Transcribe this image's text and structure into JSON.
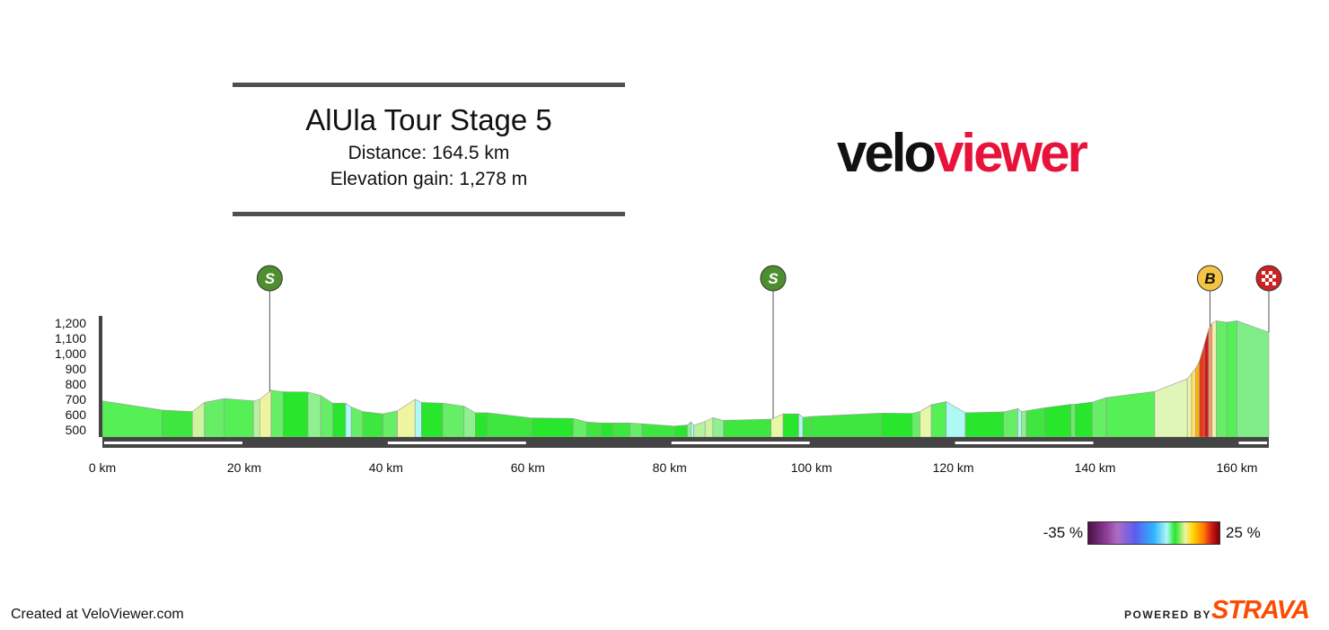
{
  "header": {
    "title": "AlUla Tour Stage 5",
    "distance": "Distance: 164.5 km",
    "elevation_gain": "Elevation gain: 1,278 m"
  },
  "brand": {
    "part1": "velo",
    "part2": "viewer"
  },
  "chart_data": {
    "type": "area",
    "title": "",
    "xlabel": "",
    "ylabel": "",
    "xlim": [
      0,
      164.5
    ],
    "ylim": [
      500,
      1200
    ],
    "y_ticks": [
      1200,
      1100,
      1000,
      900,
      800,
      700,
      600,
      500
    ],
    "y_tick_labels": [
      "1,200",
      "1,100",
      "1,000",
      "900",
      "800",
      "700",
      "600",
      "500"
    ],
    "x_ticks": [
      0,
      20,
      40,
      60,
      80,
      100,
      120,
      140,
      160
    ],
    "x_tick_labels": [
      "0 km",
      "20 km",
      "40 km",
      "60 km",
      "80 km",
      "100 km",
      "120 km",
      "140 km",
      "160 km"
    ],
    "grid": false,
    "segments": [
      {
        "x0": 0,
        "x1": 8.4,
        "y0": 690,
        "y1": 630,
        "color": "#55f055"
      },
      {
        "x0": 8.4,
        "x1": 12.7,
        "y0": 630,
        "y1": 620,
        "color": "#40e640"
      },
      {
        "x0": 12.7,
        "x1": 14.4,
        "y0": 620,
        "y1": 680,
        "color": "#cdf5a0"
      },
      {
        "x0": 14.4,
        "x1": 17.2,
        "y0": 680,
        "y1": 705,
        "color": "#66ee66"
      },
      {
        "x0": 17.2,
        "x1": 21.3,
        "y0": 705,
        "y1": 690,
        "color": "#55f055"
      },
      {
        "x0": 21.3,
        "x1": 22.2,
        "y0": 690,
        "y1": 700,
        "color": "#b8f0a0"
      },
      {
        "x0": 22.2,
        "x1": 23.8,
        "y0": 700,
        "y1": 760,
        "color": "#eef4a0"
      },
      {
        "x0": 23.8,
        "x1": 25.5,
        "y0": 760,
        "y1": 750,
        "color": "#66ee66"
      },
      {
        "x0": 25.5,
        "x1": 29.0,
        "y0": 750,
        "y1": 748,
        "color": "#28e62c"
      },
      {
        "x0": 29.0,
        "x1": 30.8,
        "y0": 748,
        "y1": 725,
        "color": "#8ef08e"
      },
      {
        "x0": 30.8,
        "x1": 32.5,
        "y0": 725,
        "y1": 675,
        "color": "#66ee66"
      },
      {
        "x0": 32.5,
        "x1": 34.3,
        "y0": 675,
        "y1": 675,
        "color": "#28e62c"
      },
      {
        "x0": 34.3,
        "x1": 35.1,
        "y0": 675,
        "y1": 650,
        "color": "#aef8f5"
      },
      {
        "x0": 35.1,
        "x1": 36.7,
        "y0": 650,
        "y1": 620,
        "color": "#66ee66"
      },
      {
        "x0": 36.7,
        "x1": 39.6,
        "y0": 620,
        "y1": 605,
        "color": "#40e640"
      },
      {
        "x0": 39.6,
        "x1": 41.6,
        "y0": 605,
        "y1": 625,
        "color": "#66ee66"
      },
      {
        "x0": 41.6,
        "x1": 44.1,
        "y0": 625,
        "y1": 700,
        "color": "#eef4a0"
      },
      {
        "x0": 44.1,
        "x1": 45.0,
        "y0": 700,
        "y1": 680,
        "color": "#aef8f5"
      },
      {
        "x0": 45.0,
        "x1": 48.0,
        "y0": 680,
        "y1": 675,
        "color": "#28e62c"
      },
      {
        "x0": 48.0,
        "x1": 51.0,
        "y0": 675,
        "y1": 655,
        "color": "#66ee66"
      },
      {
        "x0": 51.0,
        "x1": 52.6,
        "y0": 655,
        "y1": 612,
        "color": "#8ef08e"
      },
      {
        "x0": 52.6,
        "x1": 54.3,
        "y0": 612,
        "y1": 612,
        "color": "#28e62c"
      },
      {
        "x0": 54.3,
        "x1": 60.6,
        "y0": 612,
        "y1": 578,
        "color": "#40e640"
      },
      {
        "x0": 60.6,
        "x1": 66.4,
        "y0": 578,
        "y1": 575,
        "color": "#28e62c"
      },
      {
        "x0": 66.4,
        "x1": 68.3,
        "y0": 575,
        "y1": 552,
        "color": "#66ee66"
      },
      {
        "x0": 68.3,
        "x1": 70.4,
        "y0": 552,
        "y1": 545,
        "color": "#40e640"
      },
      {
        "x0": 70.4,
        "x1": 72.0,
        "y0": 545,
        "y1": 545,
        "color": "#28e62c"
      },
      {
        "x0": 72.0,
        "x1": 74.4,
        "y0": 545,
        "y1": 545,
        "color": "#40e640"
      },
      {
        "x0": 74.4,
        "x1": 76.1,
        "y0": 545,
        "y1": 540,
        "color": "#66ee66"
      },
      {
        "x0": 76.1,
        "x1": 80.7,
        "y0": 540,
        "y1": 525,
        "color": "#40e640"
      },
      {
        "x0": 80.7,
        "x1": 82.5,
        "y0": 525,
        "y1": 532,
        "color": "#28e62c"
      },
      {
        "x0": 82.5,
        "x1": 83.0,
        "y0": 532,
        "y1": 552,
        "color": "#8ef08e"
      },
      {
        "x0": 83.0,
        "x1": 83.4,
        "y0": 552,
        "y1": 530,
        "color": "#aef8f5"
      },
      {
        "x0": 83.4,
        "x1": 85.0,
        "y0": 530,
        "y1": 555,
        "color": "#b8f0a0"
      },
      {
        "x0": 85.0,
        "x1": 86.1,
        "y0": 555,
        "y1": 580,
        "color": "#cdf5a0"
      },
      {
        "x0": 86.1,
        "x1": 87.6,
        "y0": 580,
        "y1": 562,
        "color": "#8ef08e"
      },
      {
        "x0": 87.6,
        "x1": 94.3,
        "y0": 562,
        "y1": 570,
        "color": "#40e640"
      },
      {
        "x0": 94.3,
        "x1": 96.0,
        "y0": 570,
        "y1": 605,
        "color": "#e6f7a8"
      },
      {
        "x0": 96.0,
        "x1": 98.2,
        "y0": 605,
        "y1": 605,
        "color": "#28e62c"
      },
      {
        "x0": 98.2,
        "x1": 98.8,
        "y0": 605,
        "y1": 582,
        "color": "#aef8f5"
      },
      {
        "x0": 98.8,
        "x1": 100.0,
        "y0": 582,
        "y1": 588,
        "color": "#40e640"
      },
      {
        "x0": 100.0,
        "x1": 109.9,
        "y0": 588,
        "y1": 610,
        "color": "#40e640"
      },
      {
        "x0": 109.9,
        "x1": 114.2,
        "y0": 610,
        "y1": 608,
        "color": "#28e62c"
      },
      {
        "x0": 114.2,
        "x1": 115.3,
        "y0": 608,
        "y1": 620,
        "color": "#66ee66"
      },
      {
        "x0": 115.3,
        "x1": 116.9,
        "y0": 620,
        "y1": 665,
        "color": "#e6f7a8"
      },
      {
        "x0": 116.9,
        "x1": 119.0,
        "y0": 665,
        "y1": 685,
        "color": "#55f055"
      },
      {
        "x0": 119.0,
        "x1": 121.7,
        "y0": 685,
        "y1": 612,
        "color": "#aef8f5"
      },
      {
        "x0": 121.7,
        "x1": 127.1,
        "y0": 612,
        "y1": 618,
        "color": "#28e62c"
      },
      {
        "x0": 127.1,
        "x1": 129.1,
        "y0": 618,
        "y1": 640,
        "color": "#66ee66"
      },
      {
        "x0": 129.1,
        "x1": 129.6,
        "y0": 640,
        "y1": 620,
        "color": "#aef8f5"
      },
      {
        "x0": 129.6,
        "x1": 130.3,
        "y0": 620,
        "y1": 625,
        "color": "#8ef08e"
      },
      {
        "x0": 130.3,
        "x1": 132.9,
        "y0": 625,
        "y1": 645,
        "color": "#40e640"
      },
      {
        "x0": 132.9,
        "x1": 136.6,
        "y0": 645,
        "y1": 668,
        "color": "#28e62c"
      },
      {
        "x0": 136.6,
        "x1": 137.2,
        "y0": 668,
        "y1": 668,
        "color": "#66ee66"
      },
      {
        "x0": 137.2,
        "x1": 139.6,
        "y0": 668,
        "y1": 682,
        "color": "#28e62c"
      },
      {
        "x0": 139.6,
        "x1": 141.6,
        "y0": 682,
        "y1": 712,
        "color": "#66ee66"
      },
      {
        "x0": 141.6,
        "x1": 148.4,
        "y0": 712,
        "y1": 752,
        "color": "#55f055"
      },
      {
        "x0": 148.4,
        "x1": 153.0,
        "y0": 752,
        "y1": 835,
        "color": "#e0f5b8"
      },
      {
        "x0": 153.0,
        "x1": 153.6,
        "y0": 835,
        "y1": 870,
        "color": "#eef4a0"
      },
      {
        "x0": 153.6,
        "x1": 154.2,
        "y0": 870,
        "y1": 905,
        "color": "#ffe066"
      },
      {
        "x0": 154.2,
        "x1": 154.7,
        "y0": 905,
        "y1": 950,
        "color": "#ffb000"
      },
      {
        "x0": 154.7,
        "x1": 155.4,
        "y0": 950,
        "y1": 1060,
        "color": "#e53a1a"
      },
      {
        "x0": 155.4,
        "x1": 156.0,
        "y0": 1060,
        "y1": 1160,
        "color": "#cc1a1a"
      },
      {
        "x0": 156.0,
        "x1": 156.5,
        "y0": 1160,
        "y1": 1200,
        "color": "#ee9a66"
      },
      {
        "x0": 156.5,
        "x1": 157.1,
        "y0": 1200,
        "y1": 1215,
        "color": "#f0f0b0"
      },
      {
        "x0": 157.1,
        "x1": 158.6,
        "y0": 1215,
        "y1": 1205,
        "color": "#66ee66"
      },
      {
        "x0": 158.6,
        "x1": 160.0,
        "y0": 1205,
        "y1": 1215,
        "color": "#55f055"
      },
      {
        "x0": 160.0,
        "x1": 164.5,
        "y0": 1215,
        "y1": 1140,
        "color": "#80ee88"
      }
    ],
    "markers": [
      {
        "km": 23.6,
        "label": "S",
        "color": "#4e8e2e"
      },
      {
        "km": 94.6,
        "label": "S",
        "color": "#4e8e2e"
      },
      {
        "km": 156.2,
        "label": "B",
        "color": "#f4c542"
      },
      {
        "km": 164.5,
        "label": "finish",
        "color": "#cc2222"
      }
    ]
  },
  "legend": {
    "min": "-35 %",
    "max": "25 %"
  },
  "footer": {
    "credit": "Created at VeloViewer.com",
    "powered": "POWERED BY",
    "strava": "STRAVA"
  }
}
